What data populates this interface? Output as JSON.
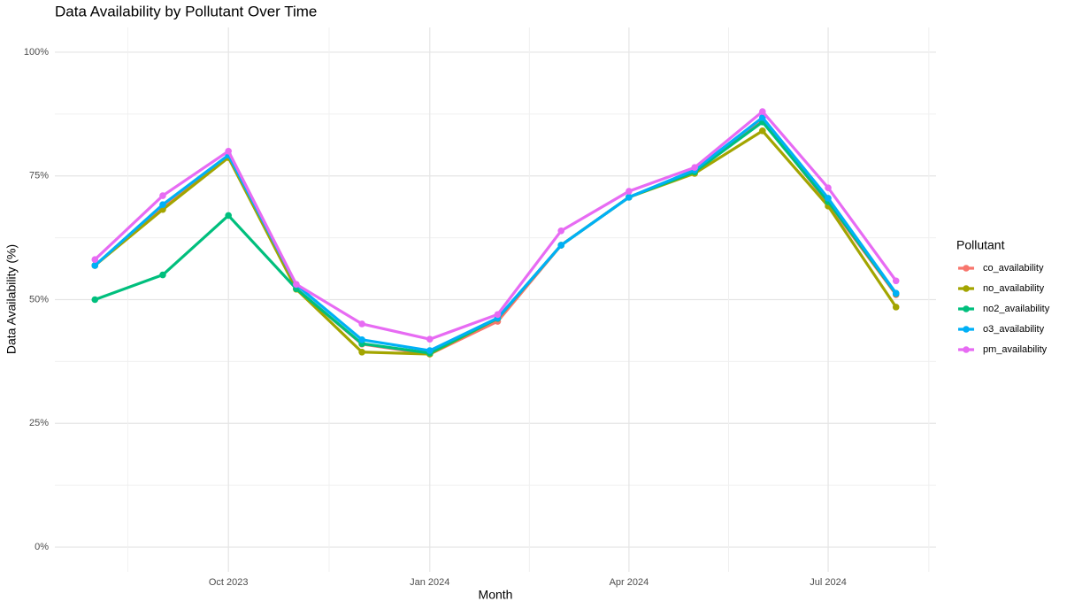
{
  "chart_data": {
    "type": "line",
    "title": "Data Availability by Pollutant Over Time",
    "x_label": "Month",
    "y_label": "Data Availability (%)",
    "legend_title": "Pollutant",
    "x": [
      "2023-08",
      "2023-09",
      "2023-10",
      "2023-11",
      "2023-12",
      "2024-01",
      "2024-02",
      "2024-03",
      "2024-04",
      "2024-05",
      "2024-06",
      "2024-07",
      "2024-08"
    ],
    "series": [
      {
        "name": "co_availability",
        "color": "#F8766D",
        "values": [
          56.9,
          68.5,
          78.8,
          52.2,
          41.0,
          39.0,
          45.6,
          61.0,
          70.7,
          75.8,
          86.2,
          69.5,
          51.0
        ]
      },
      {
        "name": "no_availability",
        "color": "#A3A500",
        "values": [
          56.9,
          68.2,
          78.7,
          52.1,
          39.4,
          39.0,
          46.2,
          61.0,
          70.7,
          75.5,
          84.1,
          68.9,
          48.5
        ]
      },
      {
        "name": "no2_availability",
        "color": "#00BF7D",
        "values": [
          50.0,
          55.0,
          67.0,
          52.2,
          41.1,
          39.2,
          46.2,
          61.0,
          70.7,
          75.8,
          85.9,
          69.8,
          51.2
        ]
      },
      {
        "name": "o3_availability",
        "color": "#00B0F6",
        "values": [
          56.9,
          69.2,
          79.2,
          53.0,
          41.9,
          39.7,
          46.3,
          61.0,
          70.7,
          76.2,
          86.8,
          70.5,
          51.3
        ]
      },
      {
        "name": "pm_availability",
        "color": "#E76BF3",
        "values": [
          58.1,
          71.0,
          80.0,
          53.1,
          45.1,
          42.0,
          47.0,
          63.9,
          71.9,
          76.7,
          88.0,
          72.6,
          53.8
        ]
      }
    ],
    "xlim": [
      "2023-08",
      "2024-08"
    ],
    "xticks": [
      {
        "value": "2023-10",
        "label": "Oct 2023"
      },
      {
        "value": "2024-01",
        "label": "Jan 2024"
      },
      {
        "value": "2024-04",
        "label": "Apr 2024"
      },
      {
        "value": "2024-07",
        "label": "Jul 2024"
      }
    ],
    "ylim": [
      -5,
      105
    ],
    "yticks": [
      {
        "value": 0,
        "label": "0%"
      },
      {
        "value": 25,
        "label": "25%"
      },
      {
        "value": 50,
        "label": "50%"
      },
      {
        "value": 75,
        "label": "75%"
      },
      {
        "value": 100,
        "label": "100%"
      }
    ],
    "grid": true,
    "legend": "right"
  }
}
